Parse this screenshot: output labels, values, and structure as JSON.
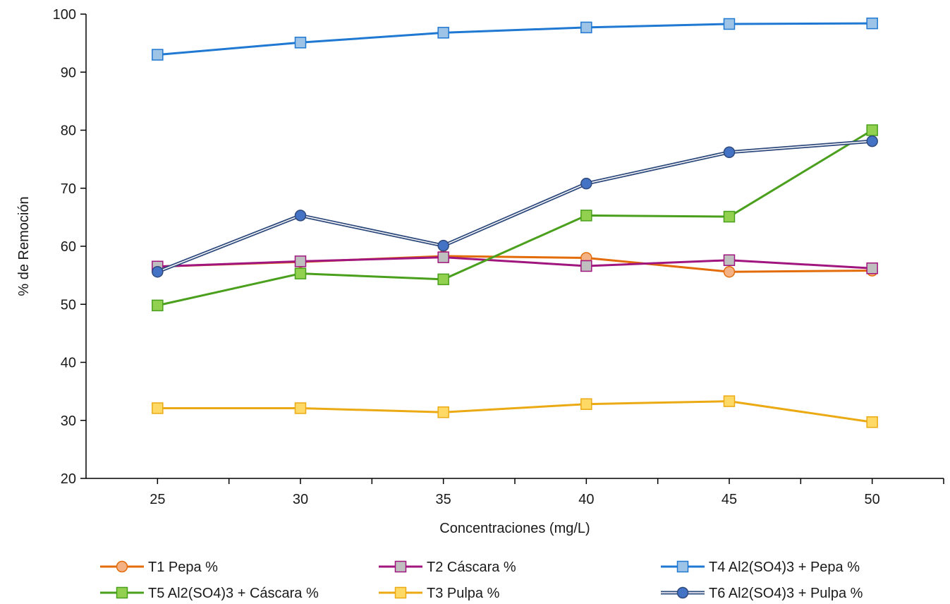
{
  "chart_data": {
    "type": "line",
    "xlabel": "Concentraciones (mg/L)",
    "ylabel": "% de Remoción",
    "x": [
      25,
      30,
      35,
      40,
      45,
      50
    ],
    "xlim": [
      22.5,
      52.5
    ],
    "ylim": [
      20,
      100
    ],
    "yticks": [
      20,
      30,
      40,
      50,
      60,
      70,
      80,
      90,
      100
    ],
    "grid": false,
    "legend_position": "bottom",
    "series": [
      {
        "name": "T1 Pepa %",
        "color": "#e36c0a",
        "marker": "circle",
        "marker_fill": "#f4b183",
        "values": [
          56.5,
          57.3,
          58.3,
          58.0,
          55.6,
          55.8
        ]
      },
      {
        "name": "T2 Cáscara %",
        "color": "#a0167e",
        "marker": "square",
        "marker_fill": "#bfbfbf",
        "values": [
          56.5,
          57.4,
          58.1,
          56.6,
          57.6,
          56.2
        ]
      },
      {
        "name": "T4 Al2(SO4)3 + Pepa %",
        "color": "#1f78d1",
        "marker": "square",
        "marker_fill": "#9dc3e6",
        "values": [
          93.0,
          95.1,
          96.8,
          97.7,
          98.3,
          98.4
        ]
      },
      {
        "name": "T5 Al2(SO4)3 + Cáscara %",
        "color": "#4aa01d",
        "marker": "square",
        "marker_fill": "#92d050",
        "values": [
          49.8,
          55.3,
          54.3,
          65.3,
          65.1,
          80.0
        ]
      },
      {
        "name": "T3 Pulpa %",
        "color": "#ebaa14",
        "marker": "square",
        "marker_fill": "#ffd966",
        "values": [
          32.1,
          32.1,
          31.4,
          32.8,
          33.3,
          29.7
        ]
      },
      {
        "name": "T6 Al2(SO4)3 + Pulpa %",
        "color": "#2f4a7d",
        "marker": "circle",
        "marker_fill": "#4472c4",
        "double_line": true,
        "values": [
          55.6,
          65.3,
          60.1,
          70.8,
          76.2,
          78.1
        ]
      }
    ]
  }
}
